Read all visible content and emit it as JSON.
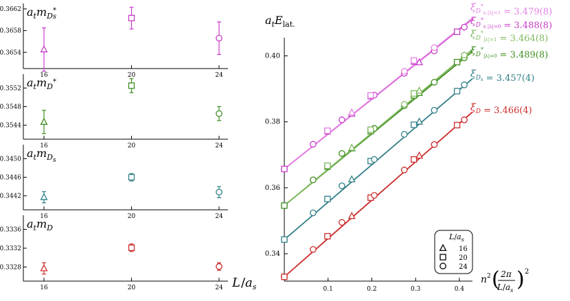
{
  "colors": {
    "Ds_star": "#c83cc8",
    "Ds_star_light": "#e27ee2",
    "D_star": "#3f8c1f",
    "D_star_light": "#7fba5e",
    "Ds": "#2f7f86",
    "D": "#cc2a2a",
    "axis": "#000000"
  },
  "left_panels": {
    "x_axis_label": "L/a_s",
    "x_ticks": [
      16,
      20,
      24
    ]
  },
  "right_panel": {
    "y_label": "a_t E_lat.",
    "x_label": "n^2 (2π/(L/a_s))^2",
    "legend": {
      "title": "L/a_s",
      "entries": [
        {
          "marker": "triangle",
          "label": "16"
        },
        {
          "marker": "square",
          "label": "20"
        },
        {
          "marker": "circle",
          "label": "24"
        }
      ]
    },
    "annotations": [
      {
        "text": "ξ_{D*_s |λ|=1} = 3.479(8)",
        "color": "#e27ee2"
      },
      {
        "text": "ξ_{D*_s |λ|=0} = 3.488(8)",
        "color": "#c83cc8"
      },
      {
        "text": "ξ_{D*_|λ|=1} = 3.464(8)",
        "color": "#7fba5e"
      },
      {
        "text": "ξ_{D*_|λ|=0} = 3.489(8)",
        "color": "#3f8c1f"
      },
      {
        "text": "ξ_{D_s} = 3.457(4)",
        "color": "#2f7f86"
      },
      {
        "text": "ξ_D = 3.466(4)",
        "color": "#cc2a2a"
      }
    ]
  },
  "chart_data": [
    {
      "type": "scatter",
      "panel": "a_t m_{D*_s}",
      "ylabel": "a_t m_{D*_s}",
      "xlabel": "L/a_s",
      "x": [
        16,
        20,
        24
      ],
      "ylim": [
        0.3651,
        0.3663
      ],
      "yticks": [
        0.3654,
        0.3658,
        0.3662
      ],
      "y_tick_labels": [
        "0.3654",
        "0.3658",
        "0.3662"
      ],
      "series": [
        {
          "color": "Ds_star",
          "points": [
            {
              "x": 16,
              "y": 0.36545,
              "err": 0.0004,
              "marker": "triangle"
            },
            {
              "x": 20,
              "y": 0.36603,
              "err": 0.0002,
              "marker": "square"
            },
            {
              "x": 24,
              "y": 0.36566,
              "err": 0.0003,
              "marker": "circle"
            }
          ]
        }
      ]
    },
    {
      "type": "scatter",
      "panel": "a_t m_{D*}",
      "ylabel": "a_t m_{D*}",
      "xlabel": "L/a_s",
      "x": [
        16,
        20,
        24
      ],
      "ylim": [
        0.3541,
        0.3555
      ],
      "yticks": [
        0.3544,
        0.3548,
        0.3552
      ],
      "y_tick_labels": [
        "0.3544",
        "0.3548",
        "0.3552"
      ],
      "series": [
        {
          "color": "D_star",
          "points": [
            {
              "x": 16,
              "y": 0.35447,
              "err": 0.00025,
              "marker": "triangle"
            },
            {
              "x": 20,
              "y": 0.35525,
              "err": 0.00015,
              "marker": "square"
            },
            {
              "x": 24,
              "y": 0.35465,
              "err": 0.00015,
              "marker": "circle"
            }
          ]
        }
      ]
    },
    {
      "type": "scatter",
      "panel": "a_t m_{D_s}",
      "ylabel": "a_t m_{D_s}",
      "xlabel": "L/a_s",
      "x": [
        16,
        20,
        24
      ],
      "ylim": [
        0.3439,
        0.3453
      ],
      "yticks": [
        0.3442,
        0.3446,
        0.345
      ],
      "y_tick_labels": [
        "0.3442",
        "0.3446",
        "0.3450"
      ],
      "series": [
        {
          "color": "Ds",
          "points": [
            {
              "x": 16,
              "y": 0.34417,
              "err": 0.00012,
              "marker": "triangle"
            },
            {
              "x": 20,
              "y": 0.3446,
              "err": 8e-05,
              "marker": "square"
            },
            {
              "x": 24,
              "y": 0.34428,
              "err": 0.00012,
              "marker": "circle"
            }
          ]
        }
      ]
    },
    {
      "type": "scatter",
      "panel": "a_t m_D",
      "ylabel": "a_t m_D",
      "xlabel": "L/a_s",
      "x": [
        16,
        20,
        24
      ],
      "ylim": [
        0.3325,
        0.3339
      ],
      "yticks": [
        0.3328,
        0.3332,
        0.3336
      ],
      "y_tick_labels": [
        "0.3328",
        "0.3332",
        "0.3336"
      ],
      "series": [
        {
          "color": "D",
          "points": [
            {
              "x": 16,
              "y": 0.33277,
              "err": 0.00012,
              "marker": "triangle"
            },
            {
              "x": 20,
              "y": 0.33321,
              "err": 8e-05,
              "marker": "square"
            },
            {
              "x": 24,
              "y": 0.33281,
              "err": 8e-05,
              "marker": "circle"
            }
          ]
        }
      ]
    },
    {
      "type": "scatter",
      "panel": "dispersion",
      "ylabel": "a_t E_lat.",
      "xlabel": "n^2 (2π/(L/a_s))^2",
      "xlim": [
        0,
        0.43
      ],
      "ylim": [
        0.3317,
        0.4055
      ],
      "xticks": [
        0.1,
        0.2,
        0.3,
        0.4
      ],
      "x_tick_labels": [
        "0.1",
        "0.2",
        "0.3",
        "0.4"
      ],
      "yticks": [
        0.34,
        0.36,
        0.38,
        0.4
      ],
      "y_tick_labels": [
        "0.34",
        "0.36",
        "0.38",
        "0.40"
      ],
      "series": [
        {
          "name": "D",
          "color": "D",
          "m": 0.333,
          "xi": 3.466,
          "points": [
            {
              "x": 0,
              "y": 0.333,
              "marker": "circle"
            },
            {
              "x": 0,
              "y": 0.333,
              "marker": "square"
            },
            {
              "x": 0.0658,
              "y": 0.3413,
              "marker": "circle"
            },
            {
              "x": 0.0987,
              "y": 0.3453,
              "marker": "square"
            },
            {
              "x": 0.1316,
              "y": 0.3495,
              "marker": "circle"
            },
            {
              "x": 0.1542,
              "y": 0.3514,
              "marker": "triangle"
            },
            {
              "x": 0.1974,
              "y": 0.357,
              "marker": "square"
            },
            {
              "x": 0.2056,
              "y": 0.3577,
              "marker": "circle"
            },
            {
              "x": 0.2742,
              "y": 0.3654,
              "marker": "circle"
            },
            {
              "x": 0.2961,
              "y": 0.3686,
              "marker": "square"
            },
            {
              "x": 0.3084,
              "y": 0.3697,
              "marker": "triangle"
            },
            {
              "x": 0.3427,
              "y": 0.3731,
              "marker": "circle"
            },
            {
              "x": 0.3948,
              "y": 0.379,
              "marker": "square"
            },
            {
              "x": 0.4113,
              "y": 0.3806,
              "marker": "circle"
            }
          ]
        },
        {
          "name": "D_s",
          "color": "Ds",
          "m": 0.3443,
          "xi": 3.457,
          "points": [
            {
              "x": 0,
              "y": 0.3443,
              "marker": "circle"
            },
            {
              "x": 0,
              "y": 0.3443,
              "marker": "square"
            },
            {
              "x": 0.0658,
              "y": 0.3524,
              "marker": "circle"
            },
            {
              "x": 0.0987,
              "y": 0.3566,
              "marker": "square"
            },
            {
              "x": 0.1316,
              "y": 0.3606,
              "marker": "circle"
            },
            {
              "x": 0.1542,
              "y": 0.3625,
              "marker": "triangle"
            },
            {
              "x": 0.1974,
              "y": 0.3681,
              "marker": "square"
            },
            {
              "x": 0.2056,
              "y": 0.3686,
              "marker": "circle"
            },
            {
              "x": 0.2742,
              "y": 0.3762,
              "marker": "circle"
            },
            {
              "x": 0.2961,
              "y": 0.3791,
              "marker": "square"
            },
            {
              "x": 0.3084,
              "y": 0.38,
              "marker": "triangle"
            },
            {
              "x": 0.3427,
              "y": 0.3835,
              "marker": "circle"
            },
            {
              "x": 0.3948,
              "y": 0.3893,
              "marker": "square"
            },
            {
              "x": 0.4113,
              "y": 0.3912,
              "marker": "circle"
            }
          ]
        },
        {
          "name": "D* |λ|=0",
          "color": "D_star",
          "m": 0.3546,
          "xi": 3.489,
          "points": [
            {
              "x": 0,
              "y": 0.3546,
              "marker": "circle"
            },
            {
              "x": 0,
              "y": 0.3546,
              "marker": "square"
            },
            {
              "x": 0.0658,
              "y": 0.3624,
              "marker": "circle"
            },
            {
              "x": 0.0987,
              "y": 0.3664,
              "marker": "square"
            },
            {
              "x": 0.1316,
              "y": 0.3704,
              "marker": "circle"
            },
            {
              "x": 0.1542,
              "y": 0.3719,
              "marker": "triangle"
            },
            {
              "x": 0.1974,
              "y": 0.3772,
              "marker": "square"
            },
            {
              "x": 0.2056,
              "y": 0.378,
              "marker": "circle"
            },
            {
              "x": 0.2742,
              "y": 0.3849,
              "marker": "circle"
            },
            {
              "x": 0.2961,
              "y": 0.388,
              "marker": "square"
            },
            {
              "x": 0.3084,
              "y": 0.3887,
              "marker": "triangle"
            },
            {
              "x": 0.3427,
              "y": 0.392,
              "marker": "circle"
            },
            {
              "x": 0.3948,
              "y": 0.3981,
              "marker": "square"
            },
            {
              "x": 0.4113,
              "y": 0.3994,
              "marker": "circle"
            }
          ]
        },
        {
          "name": "D* |λ|=1",
          "color": "D_star_light",
          "m": 0.3546,
          "xi": 3.464,
          "points": [
            {
              "x": 0.0987,
              "y": 0.3667,
              "marker": "square"
            },
            {
              "x": 0.1542,
              "y": 0.3721,
              "marker": "triangle"
            },
            {
              "x": 0.1974,
              "y": 0.3776,
              "marker": "square"
            },
            {
              "x": 0.2742,
              "y": 0.3853,
              "marker": "circle"
            },
            {
              "x": 0.2961,
              "y": 0.3886,
              "marker": "square"
            },
            {
              "x": 0.3084,
              "y": 0.3894,
              "marker": "triangle"
            },
            {
              "x": 0.4113,
              "y": 0.4002,
              "marker": "circle"
            }
          ]
        },
        {
          "name": "D*_s |λ|=0",
          "color": "Ds_star",
          "m": 0.3657,
          "xi": 3.488,
          "points": [
            {
              "x": 0,
              "y": 0.3657,
              "marker": "circle"
            },
            {
              "x": 0,
              "y": 0.3657,
              "marker": "square"
            },
            {
              "x": 0.0658,
              "y": 0.3732,
              "marker": "circle"
            },
            {
              "x": 0.0987,
              "y": 0.3771,
              "marker": "square"
            },
            {
              "x": 0.1316,
              "y": 0.3806,
              "marker": "circle"
            },
            {
              "x": 0.1542,
              "y": 0.3824,
              "marker": "triangle"
            },
            {
              "x": 0.1974,
              "y": 0.3878,
              "marker": "square"
            },
            {
              "x": 0.2056,
              "y": 0.3881,
              "marker": "circle"
            },
            {
              "x": 0.2742,
              "y": 0.3947,
              "marker": "circle"
            },
            {
              "x": 0.2961,
              "y": 0.3983,
              "marker": "square"
            },
            {
              "x": 0.3084,
              "y": 0.398,
              "marker": "triangle"
            },
            {
              "x": 0.3427,
              "y": 0.4015,
              "marker": "circle"
            },
            {
              "x": 0.3948,
              "y": 0.4073,
              "marker": "square"
            },
            {
              "x": 0.4113,
              "y": 0.4087,
              "marker": "circle"
            }
          ]
        },
        {
          "name": "D*_s |λ|=1",
          "color": "Ds_star_light",
          "m": 0.3657,
          "xi": 3.479,
          "points": [
            {
              "x": 0.0987,
              "y": 0.3773,
              "marker": "square"
            },
            {
              "x": 0.1542,
              "y": 0.3828,
              "marker": "triangle"
            },
            {
              "x": 0.1974,
              "y": 0.388,
              "marker": "square"
            },
            {
              "x": 0.2742,
              "y": 0.3953,
              "marker": "circle"
            },
            {
              "x": 0.2961,
              "y": 0.3986,
              "marker": "square"
            },
            {
              "x": 0.3427,
              "y": 0.4025,
              "marker": "circle"
            }
          ]
        }
      ]
    }
  ]
}
